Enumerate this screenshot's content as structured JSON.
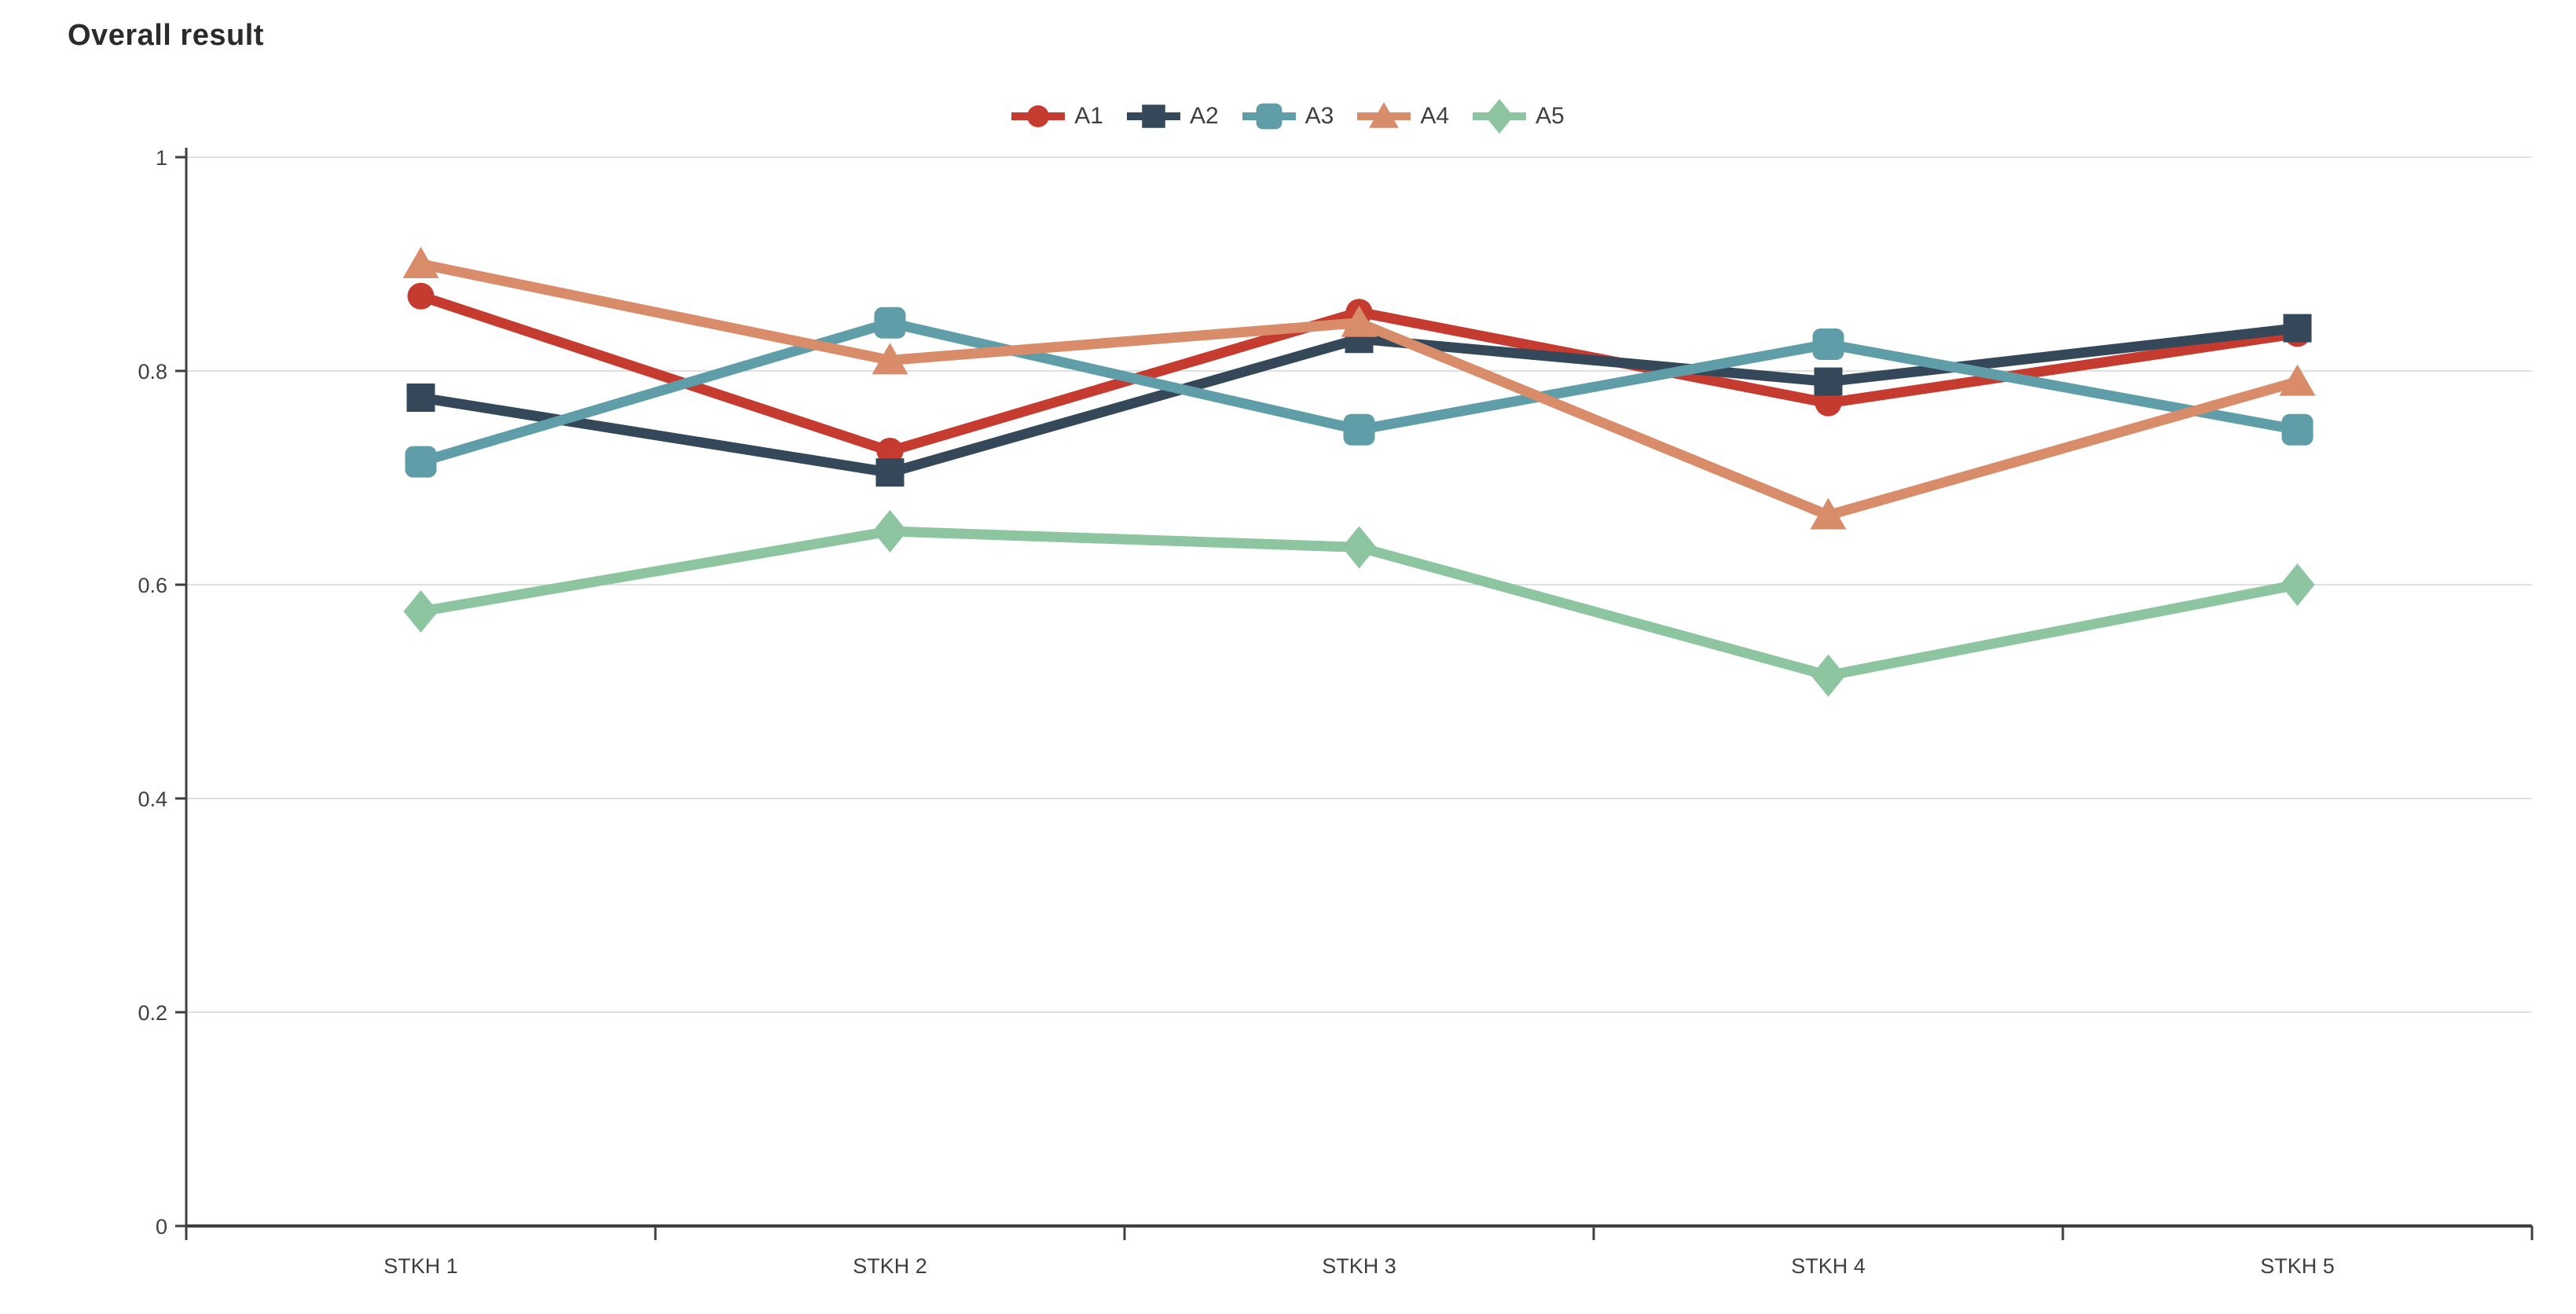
{
  "chart_data": {
    "type": "line",
    "title": "Overall result",
    "xlabel": "",
    "ylabel": "",
    "categories": [
      "STKH 1",
      "STKH 2",
      "STKH 3",
      "STKH 4",
      "STKH 5"
    ],
    "series": [
      {
        "name": "A1",
        "marker": "circle",
        "color": "#c63b30",
        "values": [
          0.87,
          0.725,
          0.855,
          0.77,
          0.835
        ]
      },
      {
        "name": "A2",
        "marker": "square",
        "color": "#34485a",
        "values": [
          0.775,
          0.705,
          0.83,
          0.79,
          0.84
        ]
      },
      {
        "name": "A3",
        "marker": "rounded-square",
        "color": "#5f9ea8",
        "values": [
          0.715,
          0.845,
          0.745,
          0.825,
          0.745
        ]
      },
      {
        "name": "A4",
        "marker": "triangle",
        "color": "#d88c6a",
        "values": [
          0.9,
          0.81,
          0.845,
          0.665,
          0.79
        ]
      },
      {
        "name": "A5",
        "marker": "diamond",
        "color": "#8cc5a0",
        "values": [
          0.575,
          0.65,
          0.635,
          0.515,
          0.6
        ]
      }
    ],
    "ylim": [
      0,
      1
    ],
    "yticks": [
      0,
      0.2,
      0.4,
      0.6,
      0.8,
      1
    ],
    "ytick_labels": [
      "0",
      "0.2",
      "0.4",
      "0.6",
      "0.8",
      "1"
    ],
    "grid": "horizontal",
    "legend_position": "top-center"
  },
  "colors": {
    "background": "#ffffff",
    "title": "#2b2b2b",
    "axis": "#3f3f3f",
    "grid": "#e0e0e0",
    "tick_text": "#3f3f3f",
    "legend_text": "#3f3f3f"
  }
}
